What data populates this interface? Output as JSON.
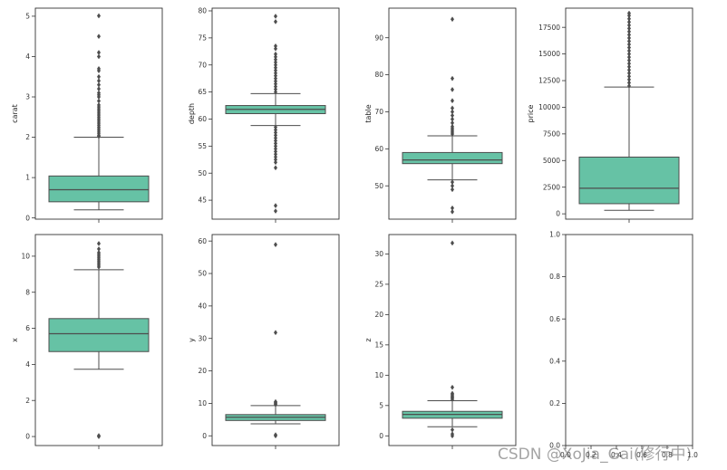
{
  "colors": {
    "box_fill": "#66c2a5",
    "line": "#4d4d4d",
    "frame": "#333333",
    "background": "#ffffff"
  },
  "watermark": "CSDN @XoJia_Gai(修行中)",
  "chart_data": [
    {
      "type": "boxplot",
      "ylabel": "carat",
      "ylim": [
        -0.03,
        5.2
      ],
      "yticks": [
        0,
        1,
        2,
        3,
        4,
        5
      ],
      "ytick_labels": [
        "0",
        "1",
        "2",
        "3",
        "4",
        "5"
      ],
      "stats": {
        "whislo": 0.2,
        "q1": 0.4,
        "med": 0.7,
        "q3": 1.04,
        "whishi": 2.0
      },
      "outliers": [
        2.02,
        2.05,
        2.1,
        2.15,
        2.2,
        2.25,
        2.3,
        2.35,
        2.4,
        2.45,
        2.5,
        2.55,
        2.6,
        2.65,
        2.7,
        2.75,
        2.8,
        2.9,
        3.0,
        3.05,
        3.1,
        3.2,
        3.3,
        3.4,
        3.5,
        3.65,
        3.7,
        4.0,
        4.1,
        4.5,
        5.01
      ]
    },
    {
      "type": "boxplot",
      "ylabel": "depth",
      "ylim": [
        41.5,
        80.5
      ],
      "yticks": [
        45,
        50,
        55,
        60,
        65,
        70,
        75,
        80
      ],
      "ytick_labels": [
        "45",
        "50",
        "55",
        "60",
        "65",
        "70",
        "75",
        "80"
      ],
      "stats": {
        "whislo": 58.8,
        "q1": 61.0,
        "med": 61.8,
        "q3": 62.5,
        "whishi": 64.7
      },
      "outliers": [
        43.0,
        44.0,
        51.0,
        52.0,
        52.5,
        53.0,
        53.5,
        54.0,
        54.5,
        55.0,
        55.5,
        56.0,
        56.5,
        57.0,
        57.5,
        58.0,
        58.5,
        65.0,
        65.5,
        66.0,
        66.5,
        67.0,
        67.5,
        68.0,
        68.5,
        69.0,
        69.5,
        70.0,
        70.5,
        71.0,
        71.5,
        72.0,
        73.0,
        73.5,
        78.0,
        79.0
      ]
    },
    {
      "type": "boxplot",
      "ylabel": "table",
      "ylim": [
        41.0,
        98.0
      ],
      "yticks": [
        50,
        60,
        70,
        80,
        90
      ],
      "ytick_labels": [
        "50",
        "60",
        "70",
        "80",
        "90"
      ],
      "stats": {
        "whislo": 51.6,
        "q1": 56.0,
        "med": 57.0,
        "q3": 59.0,
        "whishi": 63.5
      },
      "outliers": [
        43.0,
        44.0,
        49.0,
        50.0,
        51.0,
        64.0,
        64.5,
        65.0,
        65.5,
        66.0,
        67.0,
        68.0,
        69.0,
        70.0,
        71.0,
        73.0,
        76.0,
        79.0,
        95.0
      ]
    },
    {
      "type": "boxplot",
      "ylabel": "price",
      "ylim": [
        -500,
        19300
      ],
      "yticks": [
        0,
        2500,
        5000,
        7500,
        10000,
        12500,
        15000,
        17500
      ],
      "ytick_labels": [
        "0",
        "2500",
        "5000",
        "7500",
        "10000",
        "12500",
        "15000",
        "17500"
      ],
      "stats": {
        "whislo": 326,
        "q1": 950,
        "med": 2400,
        "q3": 5324,
        "whishi": 11900
      },
      "outliers": [
        12000,
        12300,
        12600,
        12900,
        13200,
        13500,
        13800,
        14100,
        14400,
        14700,
        15000,
        15300,
        15600,
        15900,
        16200,
        16500,
        16800,
        17100,
        17400,
        17700,
        18000,
        18300,
        18600,
        18823
      ]
    },
    {
      "type": "boxplot",
      "ylabel": "x",
      "ylim": [
        -0.5,
        11.2
      ],
      "yticks": [
        0,
        2,
        4,
        6,
        8,
        10
      ],
      "ytick_labels": [
        "0",
        "2",
        "4",
        "6",
        "8",
        "10"
      ],
      "stats": {
        "whislo": 3.73,
        "q1": 4.71,
        "med": 5.7,
        "q3": 6.54,
        "whishi": 9.25
      },
      "outliers": [
        0,
        0.05,
        9.4,
        9.5,
        9.6,
        9.7,
        9.8,
        9.9,
        10.0,
        10.1,
        10.2,
        10.4,
        10.7
      ]
    },
    {
      "type": "boxplot",
      "ylabel": "y",
      "ylim": [
        -3,
        62
      ],
      "yticks": [
        0,
        10,
        20,
        30,
        40,
        50,
        60
      ],
      "ytick_labels": [
        "0",
        "10",
        "20",
        "30",
        "40",
        "50",
        "60"
      ],
      "stats": {
        "whislo": 3.7,
        "q1": 4.72,
        "med": 5.71,
        "q3": 6.54,
        "whishi": 9.3
      },
      "outliers": [
        0,
        0.3,
        9.6,
        9.9,
        10.2,
        10.5,
        31.8,
        58.9
      ]
    },
    {
      "type": "boxplot",
      "ylabel": "z",
      "ylim": [
        -1.6,
        33.2
      ],
      "yticks": [
        0,
        5,
        10,
        15,
        20,
        25,
        30
      ],
      "ytick_labels": [
        "0",
        "5",
        "10",
        "15",
        "20",
        "25",
        "30"
      ],
      "stats": {
        "whislo": 1.5,
        "q1": 2.91,
        "med": 3.53,
        "q3": 4.04,
        "whishi": 5.8
      },
      "outliers": [
        0,
        0.3,
        1.0,
        6.0,
        6.2,
        6.4,
        6.6,
        6.8,
        7.0,
        8.0,
        31.8
      ]
    },
    {
      "type": "empty",
      "ylabel": "",
      "ylim": [
        0,
        1
      ],
      "xlim": [
        0,
        1
      ],
      "yticks": [
        0.0,
        0.2,
        0.4,
        0.6,
        0.8,
        1.0
      ],
      "ytick_labels": [
        "0.0",
        "0.2",
        "0.4",
        "0.6",
        "0.8",
        "1.0"
      ],
      "xticks": [
        0.0,
        0.2,
        0.4,
        0.6,
        0.8,
        1.0
      ],
      "xtick_labels": [
        "0.0",
        "0.2",
        "0.4",
        "0.6",
        "0.8",
        "1.0"
      ]
    }
  ]
}
